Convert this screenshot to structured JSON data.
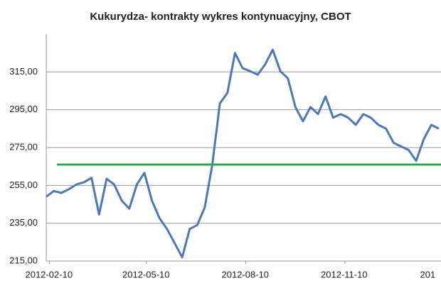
{
  "chart_data": {
    "type": "line",
    "title": "Kukurydza- kontrakty wykres kontynuacyjny, CBOT",
    "x": [
      "2012-02-07",
      "2012-02-14",
      "2012-02-21",
      "2012-02-28",
      "2012-03-06",
      "2012-03-13",
      "2012-03-20",
      "2012-03-27",
      "2012-04-03",
      "2012-04-10",
      "2012-04-17",
      "2012-04-24",
      "2012-05-01",
      "2012-05-08",
      "2012-05-15",
      "2012-05-22",
      "2012-05-29",
      "2012-06-05",
      "2012-06-12",
      "2012-06-19",
      "2012-06-26",
      "2012-07-03",
      "2012-07-10",
      "2012-07-17",
      "2012-07-24",
      "2012-07-31",
      "2012-08-07",
      "2012-08-14",
      "2012-08-21",
      "2012-08-28",
      "2012-09-04",
      "2012-09-11",
      "2012-09-18",
      "2012-09-25",
      "2012-10-02",
      "2012-10-09",
      "2012-10-16",
      "2012-10-23",
      "2012-10-30",
      "2012-11-06",
      "2012-11-13",
      "2012-11-20",
      "2012-11-27",
      "2012-12-04",
      "2012-12-11",
      "2012-12-18",
      "2012-12-25",
      "2013-01-01",
      "2013-01-08",
      "2013-01-15",
      "2013-01-22",
      "2013-01-29",
      "2013-02-05"
    ],
    "series": [
      {
        "color": "#4a78bd",
        "values": [
          249,
          252,
          251,
          253,
          255.5,
          256.7,
          259,
          239.6,
          258.5,
          255.5,
          247,
          242.7,
          255.5,
          261.6,
          247,
          237.7,
          232,
          224.5,
          217,
          232,
          234,
          243.4,
          266,
          298.3,
          304,
          325,
          317,
          315.4,
          313.5,
          319,
          326.7,
          315.4,
          311.6,
          296.4,
          288.9,
          296.4,
          292.7,
          302,
          290.8,
          292.7,
          290.8,
          287,
          292.7,
          290.8,
          287,
          285,
          277.5,
          275.6,
          273.7,
          268,
          279.4,
          287,
          285
        ]
      }
    ],
    "reference_line": {
      "value": 266,
      "color": "#2aa84a"
    },
    "xlim": [
      "2012-02-07",
      "2013-02-07"
    ],
    "xticks": [
      "2012-02-10",
      "2012-05-10",
      "2012-08-10",
      "2012-11-10",
      {
        "value": "2013-02-10",
        "label": "201"
      }
    ],
    "ylim": [
      215,
      335
    ],
    "yticks": [
      {
        "value": 215,
        "label": "215,00"
      },
      {
        "value": 235,
        "label": "235,00"
      },
      {
        "value": 255,
        "label": "255,00"
      },
      {
        "value": 275,
        "label": "275,00"
      },
      {
        "value": 295,
        "label": "295,00"
      },
      {
        "value": 315,
        "label": "315,00"
      }
    ],
    "grid": true
  }
}
